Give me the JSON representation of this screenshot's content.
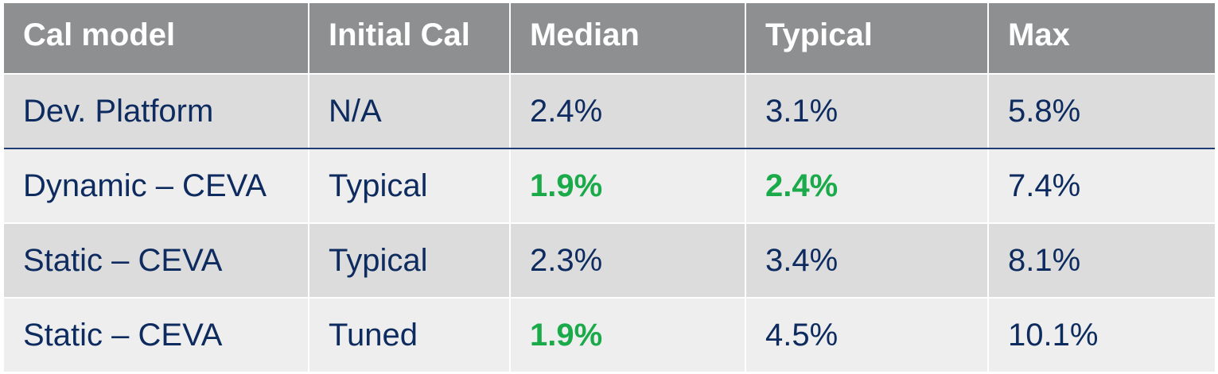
{
  "colors": {
    "header_bg": "#8e8f91",
    "header_text": "#ffffff",
    "row_dark": "#dcdcdd",
    "row_light": "#eeeeee",
    "text": "#0d2b5e",
    "highlight": "#1aaa4a",
    "divider": "#1f3d73"
  },
  "table": {
    "headers": [
      "Cal model",
      "Initial Cal",
      "Median",
      "Typical",
      "Max"
    ],
    "rows": [
      {
        "cells": [
          "Dev. Platform",
          "N/A",
          "2.4%",
          "3.1%",
          "5.8%"
        ],
        "highlighted": []
      },
      {
        "cells": [
          "Dynamic – CEVA",
          "Typical",
          "1.9%",
          "2.4%",
          "7.4%"
        ],
        "highlighted": [
          2,
          3
        ]
      },
      {
        "cells": [
          "Static – CEVA",
          "Typical",
          "2.3%",
          "3.4%",
          "8.1%"
        ],
        "highlighted": []
      },
      {
        "cells": [
          "Static – CEVA",
          "Tuned",
          "1.9%",
          "4.5%",
          "10.1%"
        ],
        "highlighted": [
          2
        ]
      }
    ]
  }
}
